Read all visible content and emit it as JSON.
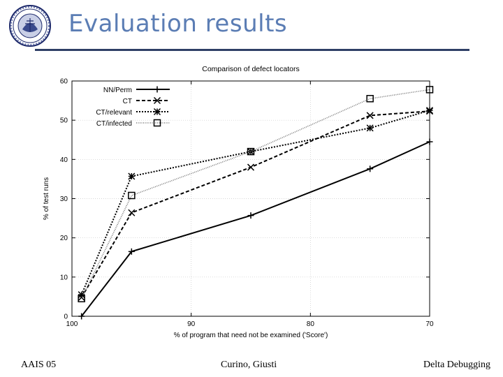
{
  "slide": {
    "title": "Evaluation results",
    "footer_left": "AAIS 05",
    "footer_center": "Curino, Giusti",
    "footer_right": "Delta Debugging"
  },
  "chart_data": {
    "type": "line",
    "title": "Comparison of defect locators",
    "xlabel": "% of program that need not be examined ('Score')",
    "ylabel": "% of test runs",
    "xlim": [
      100,
      70
    ],
    "ylim": [
      0,
      60
    ],
    "x_reversed": true,
    "x_ticks": [
      100,
      90,
      80,
      70
    ],
    "y_ticks": [
      0,
      10,
      20,
      30,
      40,
      50,
      60
    ],
    "grid": true,
    "legend_position": "top-left",
    "series": [
      {
        "name": "NN/Perm",
        "marker": "plus",
        "dash": "solid",
        "color": "#000000",
        "width": 2,
        "points": [
          [
            99.2,
            0
          ],
          [
            95,
            16.5
          ],
          [
            85,
            25.7
          ],
          [
            75,
            37.6
          ],
          [
            70,
            44.5
          ]
        ]
      },
      {
        "name": "CT",
        "marker": "x",
        "dash": "dashed",
        "color": "#000000",
        "width": 2,
        "points": [
          [
            99.2,
            4.8
          ],
          [
            95,
            26.4
          ],
          [
            85,
            38
          ],
          [
            75,
            51.2
          ],
          [
            70,
            52.3
          ]
        ]
      },
      {
        "name": "CT/relevant",
        "marker": "star",
        "dash": "dotted",
        "color": "#000000",
        "width": 2,
        "points": [
          [
            99.2,
            5.5
          ],
          [
            95,
            35.7
          ],
          [
            85,
            42
          ],
          [
            75,
            48
          ],
          [
            70,
            52.5
          ]
        ]
      },
      {
        "name": "CT/infected",
        "marker": "square",
        "dash": "fine-dotted",
        "color": "#777777",
        "width": 1.6,
        "points": [
          [
            99.2,
            4.5
          ],
          [
            95,
            30.8
          ],
          [
            85,
            42
          ],
          [
            75,
            55.5
          ],
          [
            70,
            57.8
          ]
        ]
      }
    ]
  }
}
